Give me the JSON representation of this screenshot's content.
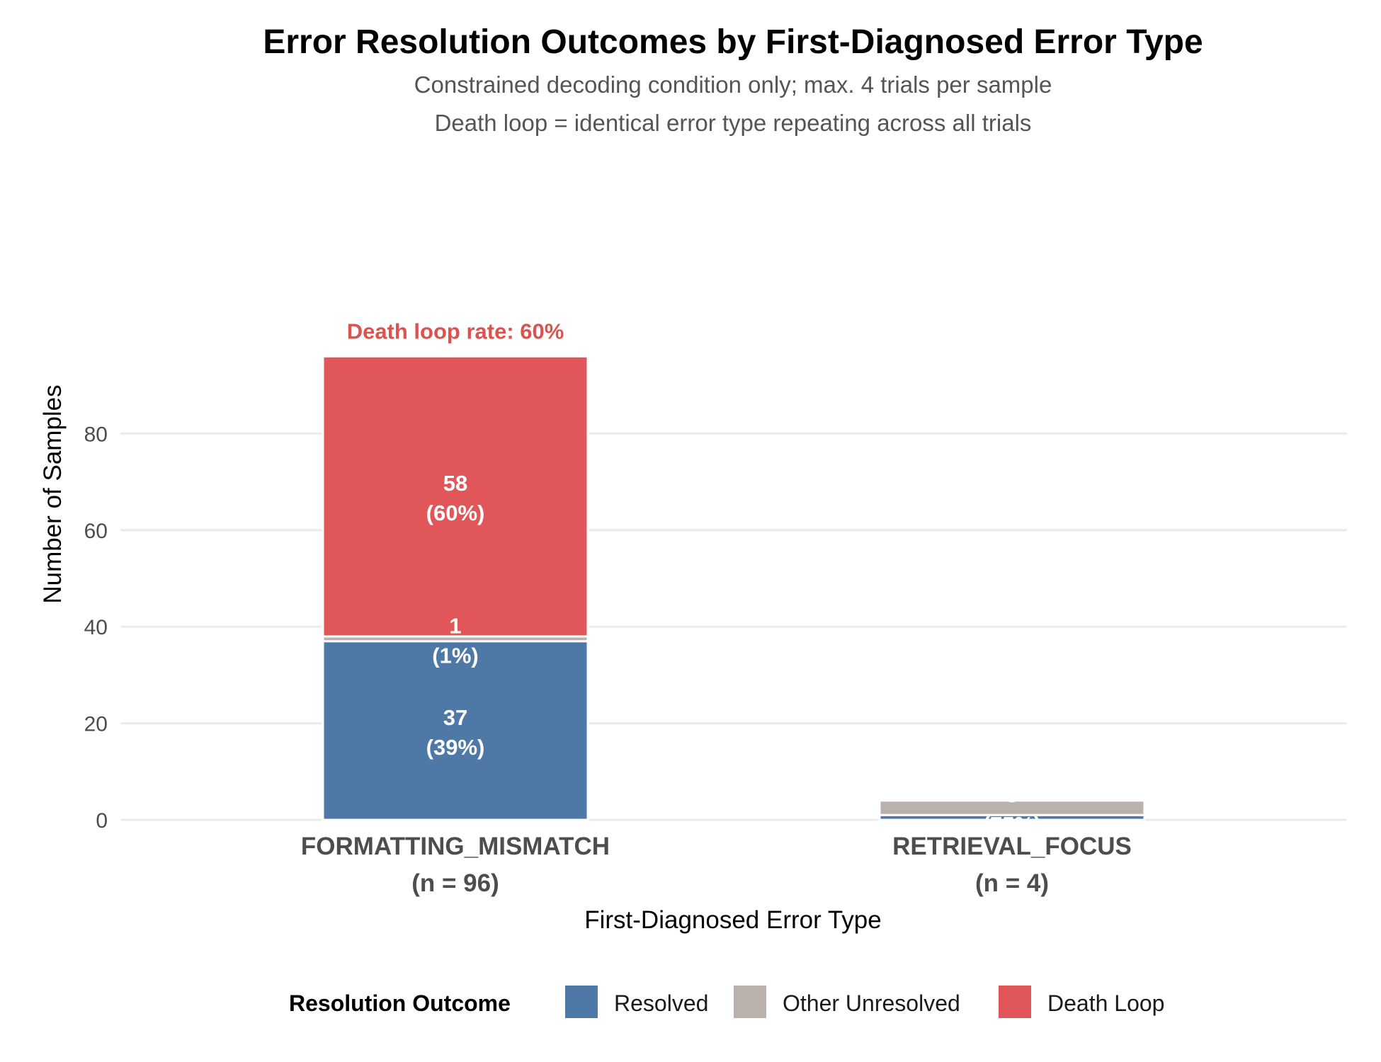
{
  "chart_data": {
    "type": "bar",
    "stacked": true,
    "title": "Error Resolution Outcomes by First-Diagnosed Error Type",
    "subtitle_lines": [
      "Constrained decoding condition only; max. 4 trials per sample",
      "Death loop = identical error type repeating across all trials"
    ],
    "xlabel": "First-Diagnosed Error Type",
    "ylabel": "Number of Samples",
    "ylim": [
      0,
      100
    ],
    "yticks": [
      0,
      20,
      40,
      60,
      80
    ],
    "grid": true,
    "categories": [
      {
        "name": "FORMATTING_MISMATCH",
        "n_label": "(n = 96)"
      },
      {
        "name": "RETRIEVAL_FOCUS",
        "n_label": "(n = 4)"
      }
    ],
    "series": [
      {
        "name": "Resolved",
        "color": "#4e79a7",
        "values": [
          37,
          1
        ],
        "labels": [
          "37\n(39%)",
          ""
        ]
      },
      {
        "name": "Other Unresolved",
        "color": "#bab0ac",
        "values": [
          1,
          3
        ],
        "labels": [
          "1\n(1%)",
          "3\n(75%)"
        ]
      },
      {
        "name": "Death Loop",
        "color": "#e15759",
        "values": [
          58,
          0
        ],
        "labels": [
          "58\n(60%)",
          ""
        ]
      }
    ],
    "annotations": [
      {
        "category": 0,
        "text": "Death loop rate: 60%",
        "color": "#d9534f"
      }
    ],
    "legend": {
      "title": "Resolution Outcome",
      "position": "bottom"
    }
  }
}
